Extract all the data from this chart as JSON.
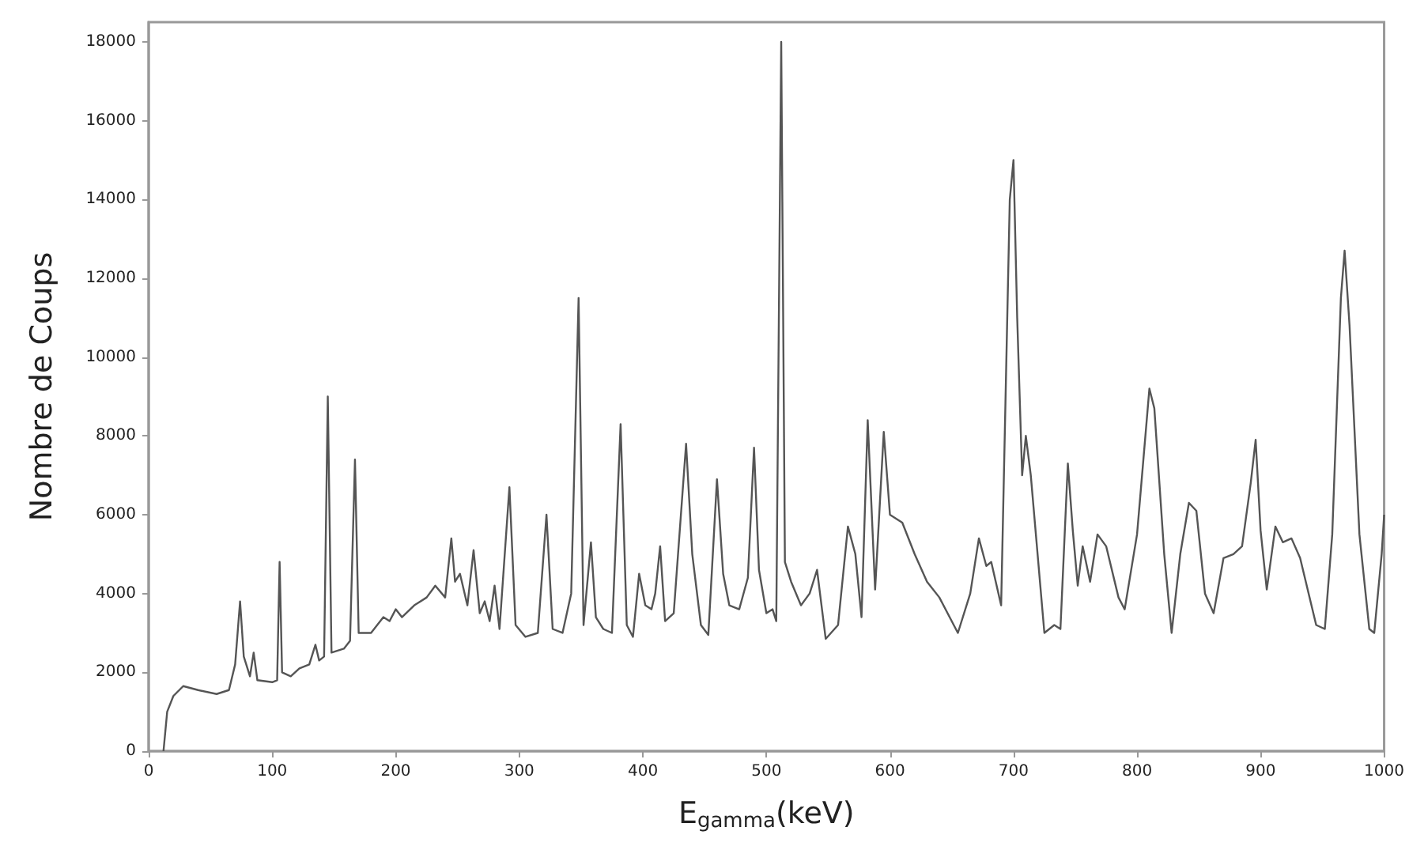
{
  "chart_data": {
    "type": "line",
    "xlabel": "E$_{gamma}$(keV)",
    "ylabel": "Nombre de Coups",
    "xlim": [
      0,
      1000
    ],
    "xticks": [
      0,
      100,
      200,
      300,
      400,
      500,
      600,
      700,
      800,
      900,
      1000
    ],
    "ylim": [
      0,
      18500
    ],
    "yticks": [
      0,
      2000,
      4000,
      6000,
      8000,
      10000,
      12000,
      14000,
      16000,
      18000
    ],
    "grid": false,
    "marker": "none",
    "line_style": "solid",
    "series": [
      {
        "color": "#555555",
        "x": [
          12,
          15,
          20,
          28,
          40,
          55,
          65,
          70,
          74,
          77,
          82,
          85,
          88,
          100,
          104,
          106,
          108,
          115,
          122,
          130,
          135,
          138,
          142,
          145,
          148,
          158,
          163,
          167,
          170,
          180,
          190,
          195,
          200,
          205,
          215,
          225,
          232,
          240,
          245,
          248,
          252,
          258,
          263,
          268,
          272,
          276,
          280,
          284,
          292,
          297,
          305,
          315,
          322,
          327,
          335,
          342,
          348,
          352,
          358,
          362,
          368,
          375,
          382,
          387,
          392,
          397,
          402,
          407,
          410,
          414,
          418,
          425,
          435,
          440,
          447,
          453,
          460,
          465,
          470,
          478,
          485,
          490,
          494,
          500,
          505,
          508,
          512,
          515,
          520,
          528,
          535,
          541,
          548,
          558,
          566,
          572,
          577,
          582,
          588,
          595,
          600,
          610,
          620,
          630,
          640,
          655,
          665,
          672,
          678,
          682,
          690,
          697,
          700,
          703,
          707,
          710,
          714,
          725,
          733,
          738,
          744,
          748,
          752,
          756,
          762,
          768,
          775,
          785,
          790,
          800,
          810,
          814,
          822,
          828,
          835,
          842,
          848,
          855,
          862,
          870,
          878,
          885,
          892,
          896,
          900,
          905,
          912,
          918,
          925,
          932,
          945,
          952,
          958,
          965,
          968,
          972,
          980,
          988,
          992,
          998,
          1000
        ],
        "values": [
          0,
          1000,
          1400,
          1650,
          1550,
          1450,
          1550,
          2200,
          3800,
          2400,
          1900,
          2500,
          1800,
          1750,
          1800,
          4800,
          2000,
          1900,
          2100,
          2200,
          2700,
          2300,
          2400,
          9000,
          2500,
          2600,
          2800,
          7400,
          3000,
          3000,
          3400,
          3300,
          3600,
          3400,
          3700,
          3900,
          4200,
          3900,
          5400,
          4300,
          4500,
          3700,
          5100,
          3500,
          3800,
          3300,
          4200,
          3100,
          6700,
          3200,
          2900,
          3000,
          6000,
          3100,
          3000,
          4000,
          11500,
          3200,
          5300,
          3400,
          3100,
          3000,
          8300,
          3200,
          2900,
          4500,
          3700,
          3600,
          4000,
          5200,
          3300,
          3500,
          7800,
          5000,
          3200,
          2950,
          6900,
          4500,
          3700,
          3600,
          4400,
          7700,
          4600,
          3500,
          3600,
          3300,
          18000,
          4800,
          4300,
          3700,
          4000,
          4600,
          2850,
          3200,
          5700,
          5000,
          3400,
          8400,
          4100,
          8100,
          6000,
          5800,
          5000,
          4300,
          3900,
          3000,
          4000,
          5400,
          4700,
          4800,
          3700,
          14000,
          15000,
          11000,
          7000,
          8000,
          7000,
          3000,
          3200,
          3100,
          7300,
          5600,
          4200,
          5200,
          4300,
          5500,
          5200,
          3900,
          3600,
          5500,
          9200,
          8700,
          5000,
          3000,
          5000,
          6300,
          6100,
          4000,
          3500,
          4900,
          5000,
          5200,
          6800,
          7900,
          5600,
          4100,
          5700,
          5300,
          5400,
          4900,
          3200,
          3100,
          5500,
          11500,
          12700,
          10800,
          5500,
          3100,
          3000,
          5000,
          6000
        ]
      }
    ]
  }
}
